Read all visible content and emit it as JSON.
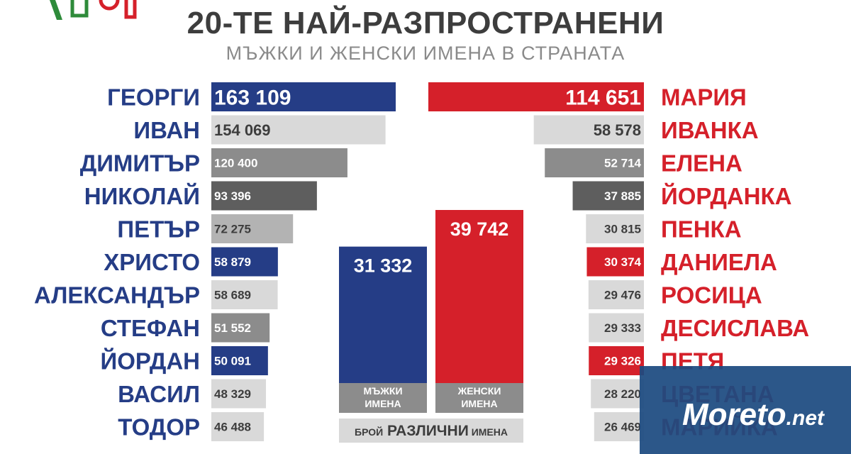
{
  "title": "20-ТЕ НАЙ-РАЗПРОСТРАНЕНИ",
  "subtitle": "МЪЖКИ И ЖЕНСКИ ИМЕНА В СТРАНАТА",
  "watermark": {
    "text": "Moreto",
    "suffix": ".net"
  },
  "colors": {
    "male": "#253d86",
    "female": "#d5202a",
    "gray_light": "#d9d9d9",
    "gray_mid": "#8c8c8c",
    "gray_dark": "#5e5e5e",
    "text_gray": "#3d3d3d"
  },
  "chart_data": [
    {
      "type": "bar",
      "orientation": "horizontal",
      "series": [
        {
          "name": "",
          "values": [
            163109,
            154069,
            120400,
            93396,
            72275,
            58879,
            58689,
            51552,
            50091,
            48329,
            46488
          ]
        }
      ],
      "categories": [
        "ГЕОРГИ",
        "ИВАН",
        "ДИМИТЪР",
        "НИКОЛАЙ",
        "ПЕТЪР",
        "ХРИСТО",
        "АЛЕКСАНДЪР",
        "СТЕФАН",
        "ЙОРДАН",
        "ВАСИЛ",
        "ТОДОР"
      ],
      "value_labels": [
        "163 109",
        "154 069",
        "120 400",
        "93 396",
        "72 275",
        "58 879",
        "58 689",
        "51 552",
        "50 091",
        "48 329",
        "46 488"
      ],
      "bar_colors": [
        "#253d86",
        "#d9d9d9",
        "#8c8c8c",
        "#5e5e5e",
        "#b3b3b3",
        "#253d86",
        "#d9d9d9",
        "#8c8c8c",
        "#253d86",
        "#d9d9d9",
        "#d9d9d9"
      ],
      "direction": "left-to-right"
    },
    {
      "type": "bar",
      "orientation": "horizontal",
      "series": [
        {
          "name": "",
          "values": [
            114651,
            58578,
            52714,
            37885,
            30815,
            30374,
            29476,
            29333,
            29326,
            28220,
            26469
          ]
        }
      ],
      "categories": [
        "МАРИЯ",
        "ИВАНКА",
        "ЕЛЕНА",
        "ЙОРДАНКА",
        "ПЕНКА",
        "ДАНИЕЛА",
        "РОСИЦА",
        "ДЕСИСЛАВА",
        "ПЕТЯ",
        "ЦВЕТАНА",
        "МАРИЙКА"
      ],
      "value_labels": [
        "114 651",
        "58 578",
        "52 714",
        "37 885",
        "30 815",
        "30 374",
        "29 476",
        "29 333",
        "29 326",
        "28 220",
        "26 469"
      ],
      "bar_colors": [
        "#d5202a",
        "#d9d9d9",
        "#8c8c8c",
        "#5e5e5e",
        "#d9d9d9",
        "#d5202a",
        "#d9d9d9",
        "#d9d9d9",
        "#d5202a",
        "#d9d9d9",
        "#d9d9d9"
      ],
      "direction": "right-to-left"
    },
    {
      "type": "bar",
      "orientation": "vertical",
      "categories": [
        "МЪЖКИ ИМЕНА",
        "ЖЕНСКИ ИМЕНА"
      ],
      "values": [
        31332,
        39742
      ],
      "value_labels": [
        "31 332",
        "39 742"
      ],
      "bar_colors": [
        "#253d86",
        "#d5202a"
      ],
      "caption_parts": [
        "БРОЙ",
        "РАЗЛИЧНИ",
        "ИМЕНА"
      ]
    }
  ]
}
